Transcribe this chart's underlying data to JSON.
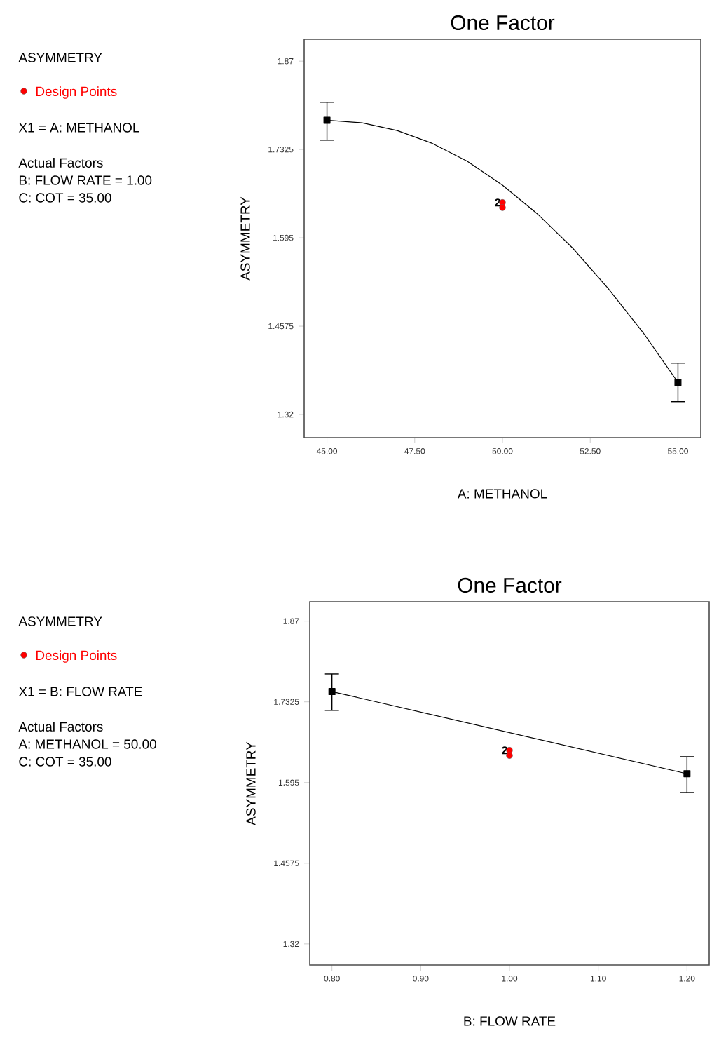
{
  "chart_data": [
    {
      "type": "scatter",
      "title": "One Factor",
      "xlabel": "A: METHANOL",
      "ylabel": "ASYMMETRY",
      "legend": "left",
      "xlim": [
        44.35,
        55.65
      ],
      "ylim": [
        1.284,
        1.904
      ],
      "xticks": [
        {
          "value": 45,
          "label": "45.00"
        },
        {
          "value": 47.5,
          "label": "47.50"
        },
        {
          "value": 50,
          "label": "50.00"
        },
        {
          "value": 52.5,
          "label": "52.50"
        },
        {
          "value": 55,
          "label": "55.00"
        }
      ],
      "yticks": [
        1.32,
        1.4575,
        1.595,
        1.7325,
        1.87
      ],
      "series": [
        {
          "type": "line",
          "color": "#000000",
          "marker": "none",
          "x": [
            45,
            46,
            47,
            48,
            49,
            50,
            51,
            52,
            53,
            54,
            55
          ],
          "values": [
            1.778,
            1.774,
            1.762,
            1.742,
            1.714,
            1.677,
            1.632,
            1.579,
            1.517,
            1.448,
            1.37
          ]
        },
        {
          "type": "scatter",
          "color": "#000000",
          "marker": "square",
          "x": [
            45,
            55
          ],
          "values": [
            1.778,
            1.37
          ],
          "errors": [
            [
              1.747,
              1.806
            ],
            [
              1.34,
              1.4
            ]
          ]
        },
        {
          "type": "scatter",
          "name": "Design Points",
          "color": "#ff0000",
          "marker": "circle",
          "x": [
            50,
            50
          ],
          "values": [
            1.65,
            1.642
          ]
        }
      ],
      "annotations": [
        "ASYMMETRY",
        "X1 = A: METHANOL",
        "Actual Factors",
        "B: FLOW RATE = 1.00",
        "C: COT = 35.00",
        {
          "text": "2",
          "x": 50,
          "y": 1.65
        }
      ]
    },
    {
      "type": "scatter",
      "title": "One Factor",
      "xlabel": "B: FLOW RATE",
      "ylabel": "ASYMMETRY",
      "legend": "left",
      "xlim": [
        0.775,
        1.225
      ],
      "ylim": [
        1.284,
        1.903
      ],
      "xticks": [
        {
          "value": 0.8,
          "label": "0.80"
        },
        {
          "value": 0.9,
          "label": "0.90"
        },
        {
          "value": 1.0,
          "label": "1.00"
        },
        {
          "value": 1.1,
          "label": "1.10"
        },
        {
          "value": 1.2,
          "label": "1.20"
        }
      ],
      "yticks": [
        1.32,
        1.4575,
        1.595,
        1.7325,
        1.87
      ],
      "series": [
        {
          "type": "line",
          "color": "#000000",
          "marker": "none",
          "x": [
            0.8,
            1.2
          ],
          "values": [
            1.75,
            1.61
          ]
        },
        {
          "type": "scatter",
          "color": "#000000",
          "marker": "square",
          "x": [
            0.8,
            1.2
          ],
          "values": [
            1.75,
            1.61
          ],
          "errors": [
            [
              1.718,
              1.78
            ],
            [
              1.578,
              1.639
            ]
          ]
        },
        {
          "type": "scatter",
          "name": "Design Points",
          "color": "#ff0000",
          "marker": "circle",
          "x": [
            1.0,
            1.0
          ],
          "values": [
            1.65,
            1.641
          ]
        }
      ],
      "annotations": [
        "ASYMMETRY",
        "X1 = B: FLOW RATE",
        "Actual Factors",
        "A: METHANOL = 50.00",
        "C: COT = 35.00",
        {
          "text": "2",
          "x": 1.0,
          "y": 1.65
        }
      ]
    }
  ]
}
